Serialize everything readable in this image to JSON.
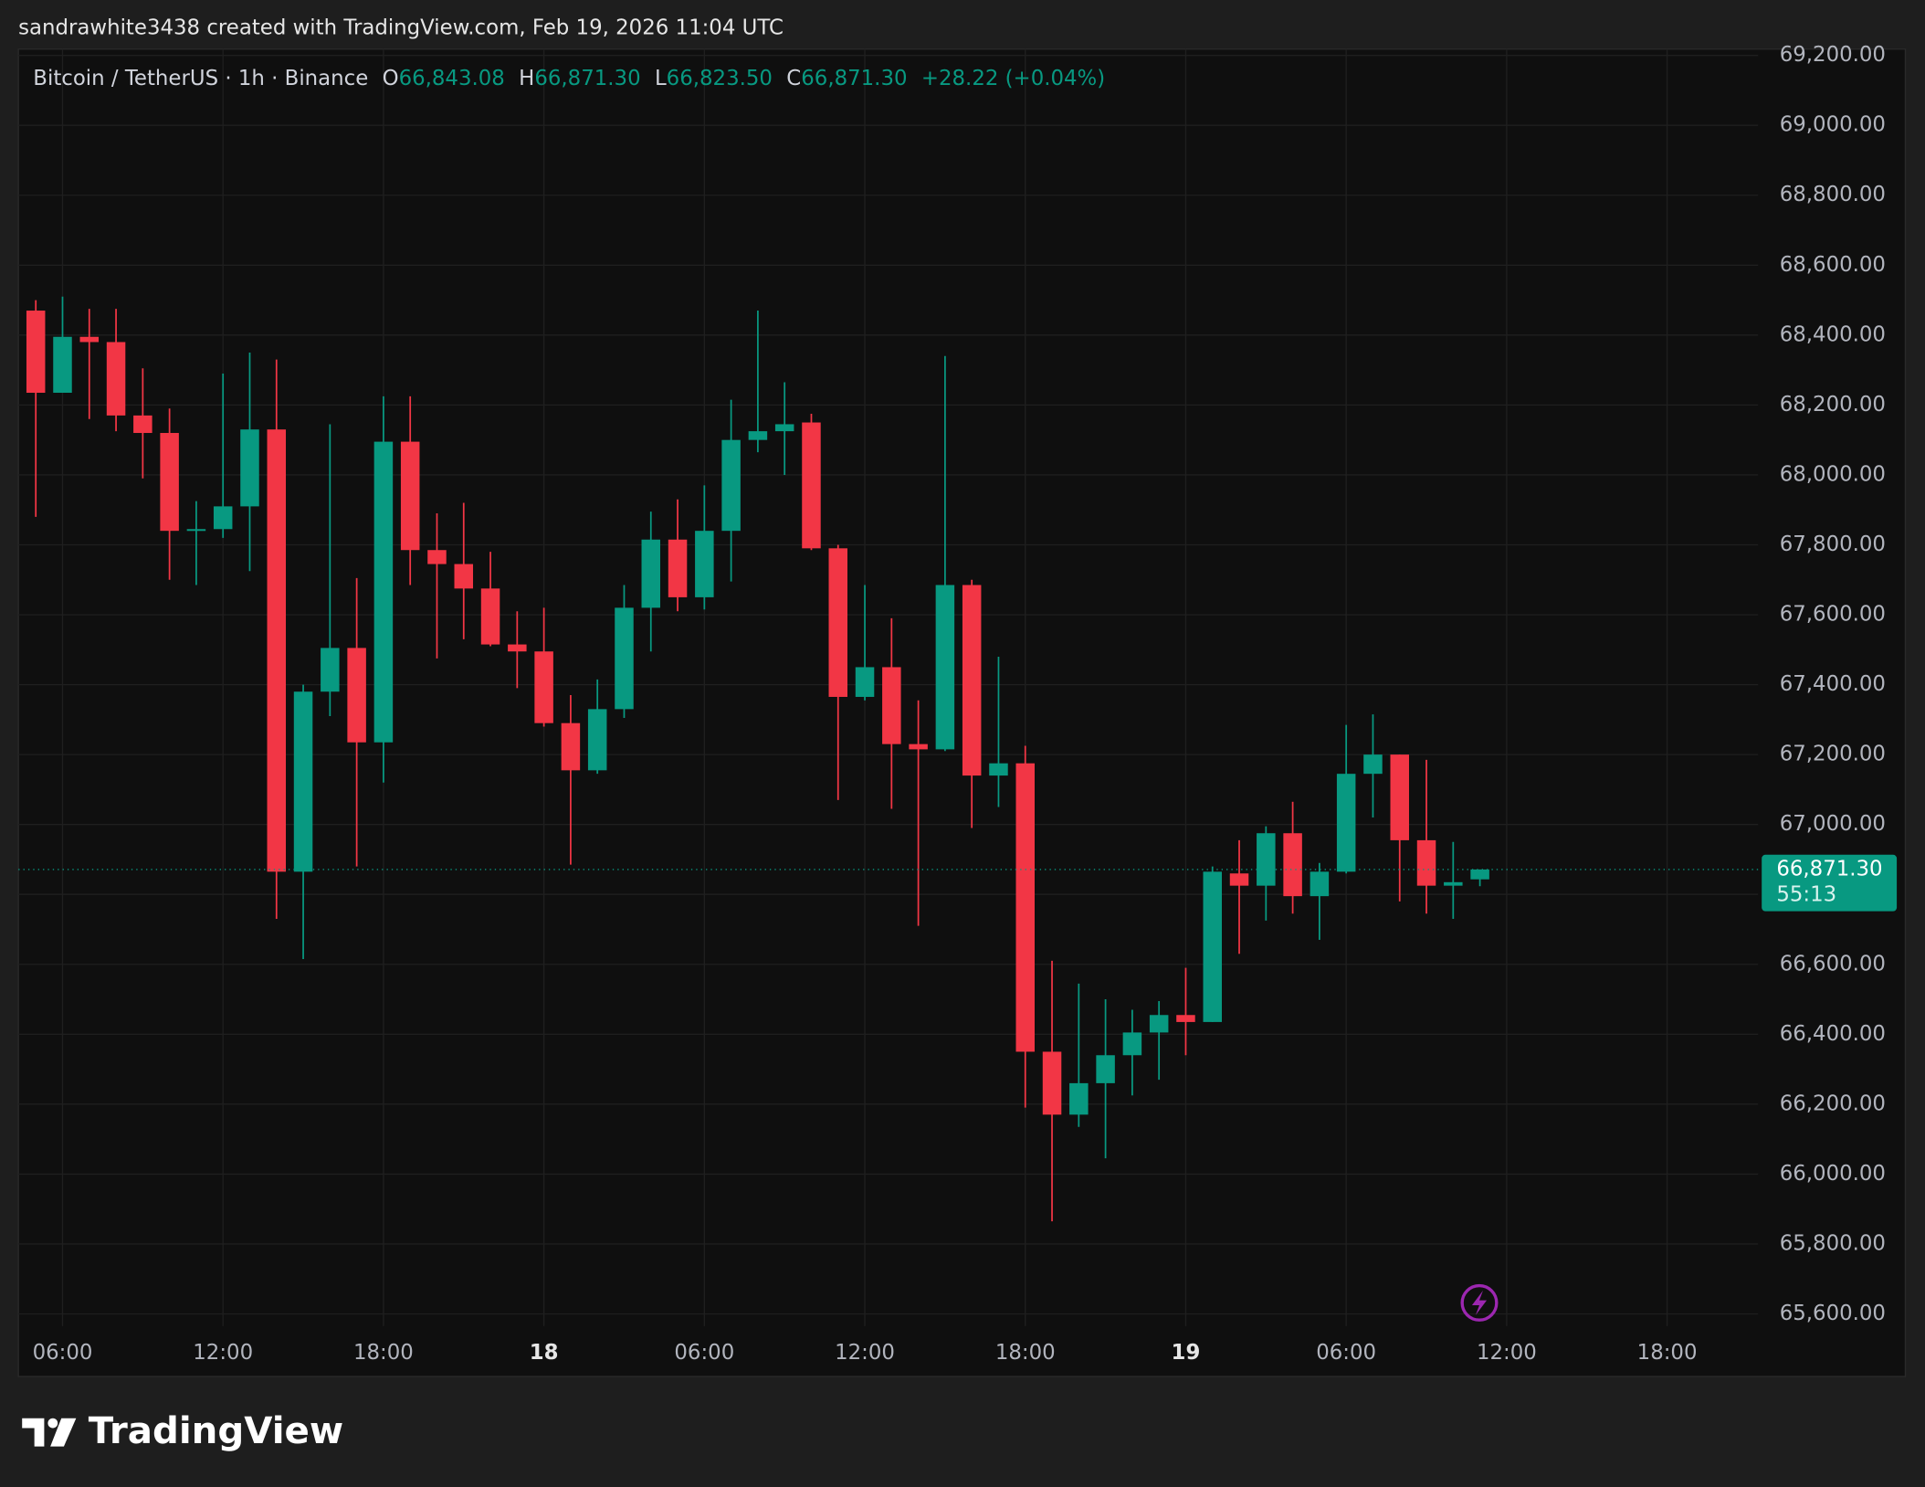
{
  "chart_data": {
    "type": "candlestick",
    "credit": "sandrawhite3438 created with TradingView.com, Feb 19, 2026 11:04 UTC",
    "symbol": "Bitcoin / TetherUS · 1h · Binance",
    "header": {
      "open_label": "O",
      "open": "66,843.08",
      "high_label": "H",
      "high": "66,871.30",
      "low_label": "L",
      "low": "66,823.50",
      "close_label": "C",
      "close": "66,871.30",
      "change": "+28.22 (+0.04%)"
    },
    "brand": "TradingView",
    "up_color": "#089981",
    "down_color": "#f23645",
    "grid": true,
    "x": [
      5,
      6,
      7,
      8,
      9,
      10,
      11,
      12,
      13,
      14,
      15,
      16,
      17,
      18,
      19,
      20,
      21,
      22,
      23,
      24,
      25,
      26,
      27,
      28,
      29,
      30,
      31,
      32,
      33,
      34,
      35,
      36,
      37,
      38,
      39,
      40,
      41,
      42,
      43,
      44,
      45,
      46,
      47,
      48,
      49,
      50,
      51,
      52,
      53,
      54,
      55,
      56,
      57,
      58,
      59
    ],
    "open": [
      68470,
      68235,
      68395,
      68380,
      68170,
      68120,
      67840,
      67845,
      67910,
      68130,
      66865,
      67380,
      67505,
      67235,
      68095,
      67785,
      67745,
      67675,
      67515,
      67495,
      67290,
      67155,
      67330,
      67620,
      67815,
      67650,
      67840,
      68100,
      68125,
      68150,
      67790,
      67365,
      67450,
      67230,
      67215,
      67685,
      67140,
      67175,
      66350,
      66170,
      66260,
      66340,
      66405,
      66455,
      66435,
      66860,
      66825,
      66975,
      66795,
      66865,
      67145,
      67200,
      66955,
      66825,
      66843.08
    ],
    "high": [
      68500,
      68510,
      68475,
      68475,
      68305,
      68190,
      67925,
      68290,
      68350,
      68330,
      67400,
      68145,
      67705,
      68225,
      68225,
      67890,
      67920,
      67780,
      67610,
      67620,
      67370,
      67415,
      67685,
      67895,
      67930,
      67970,
      68215,
      68470,
      68265,
      68175,
      67800,
      67685,
      67590,
      67355,
      68340,
      67700,
      67480,
      67225,
      66610,
      66545,
      66500,
      66470,
      66495,
      66590,
      66880,
      66955,
      66995,
      67065,
      66890,
      67285,
      67315,
      67200,
      67185,
      66950,
      66871.3
    ],
    "low": [
      67880,
      68235,
      68160,
      68125,
      67990,
      67700,
      67685,
      67820,
      67725,
      66730,
      66615,
      67310,
      66880,
      67120,
      67685,
      67475,
      67530,
      67510,
      67390,
      67280,
      66885,
      67145,
      67305,
      67495,
      67610,
      67615,
      67695,
      68065,
      68000,
      67785,
      67070,
      67355,
      67045,
      66710,
      67210,
      66990,
      67050,
      66190,
      65865,
      66135,
      66045,
      66225,
      66270,
      66340,
      66435,
      66630,
      66725,
      66745,
      66670,
      66860,
      67020,
      66780,
      66745,
      66730,
      66823.5
    ],
    "close": [
      68235,
      68395,
      68380,
      68170,
      68120,
      67840,
      67845,
      67910,
      68130,
      66865,
      67380,
      67505,
      67235,
      68095,
      67785,
      67745,
      67675,
      67515,
      67495,
      67290,
      67155,
      67330,
      67620,
      67815,
      67650,
      67840,
      68100,
      68125,
      68145,
      67790,
      67365,
      67450,
      67230,
      67215,
      67685,
      67140,
      67175,
      66350,
      66170,
      66260,
      66340,
      66405,
      66455,
      66435,
      66865,
      66825,
      66975,
      66795,
      66865,
      67145,
      67200,
      66955,
      66825,
      66835,
      66871.3
    ],
    "xlim": [
      4.35,
      69.4
    ],
    "xticks": [
      {
        "value": 6,
        "label": "06:00"
      },
      {
        "value": 12,
        "label": "12:00"
      },
      {
        "value": 18,
        "label": "18:00"
      },
      {
        "value": 24,
        "label": "18"
      },
      {
        "value": 30,
        "label": "06:00"
      },
      {
        "value": 36,
        "label": "12:00"
      },
      {
        "value": 42,
        "label": "18:00"
      },
      {
        "value": 48,
        "label": "19"
      },
      {
        "value": 54,
        "label": "06:00"
      },
      {
        "value": 60,
        "label": "12:00"
      },
      {
        "value": 66,
        "label": "18:00"
      }
    ],
    "ylim": [
      65565,
      69218
    ],
    "yticks": [
      {
        "value": 65600,
        "label": "65,600.00"
      },
      {
        "value": 65800,
        "label": "65,800.00"
      },
      {
        "value": 66000,
        "label": "66,000.00"
      },
      {
        "value": 66200,
        "label": "66,200.00"
      },
      {
        "value": 66400,
        "label": "66,400.00"
      },
      {
        "value": 66600,
        "label": "66,600.00"
      },
      {
        "value": 66800,
        "label": "66,800.00"
      },
      {
        "value": 67000,
        "label": "67,000.00"
      },
      {
        "value": 67200,
        "label": "67,200.00"
      },
      {
        "value": 67400,
        "label": "67,400.00"
      },
      {
        "value": 67600,
        "label": "67,600.00"
      },
      {
        "value": 67800,
        "label": "67,800.00"
      },
      {
        "value": 68000,
        "label": "68,000.00"
      },
      {
        "value": 68200,
        "label": "68,200.00"
      },
      {
        "value": 68400,
        "label": "68,400.00"
      },
      {
        "value": 68600,
        "label": "68,600.00"
      },
      {
        "value": 68800,
        "label": "68,800.00"
      },
      {
        "value": 69000,
        "label": "69,000.00"
      },
      {
        "value": 69200,
        "label": "69,200.00"
      }
    ],
    "last_price": {
      "value": 66871.3,
      "label": "66,871.30"
    },
    "countdown": "55:13"
  }
}
